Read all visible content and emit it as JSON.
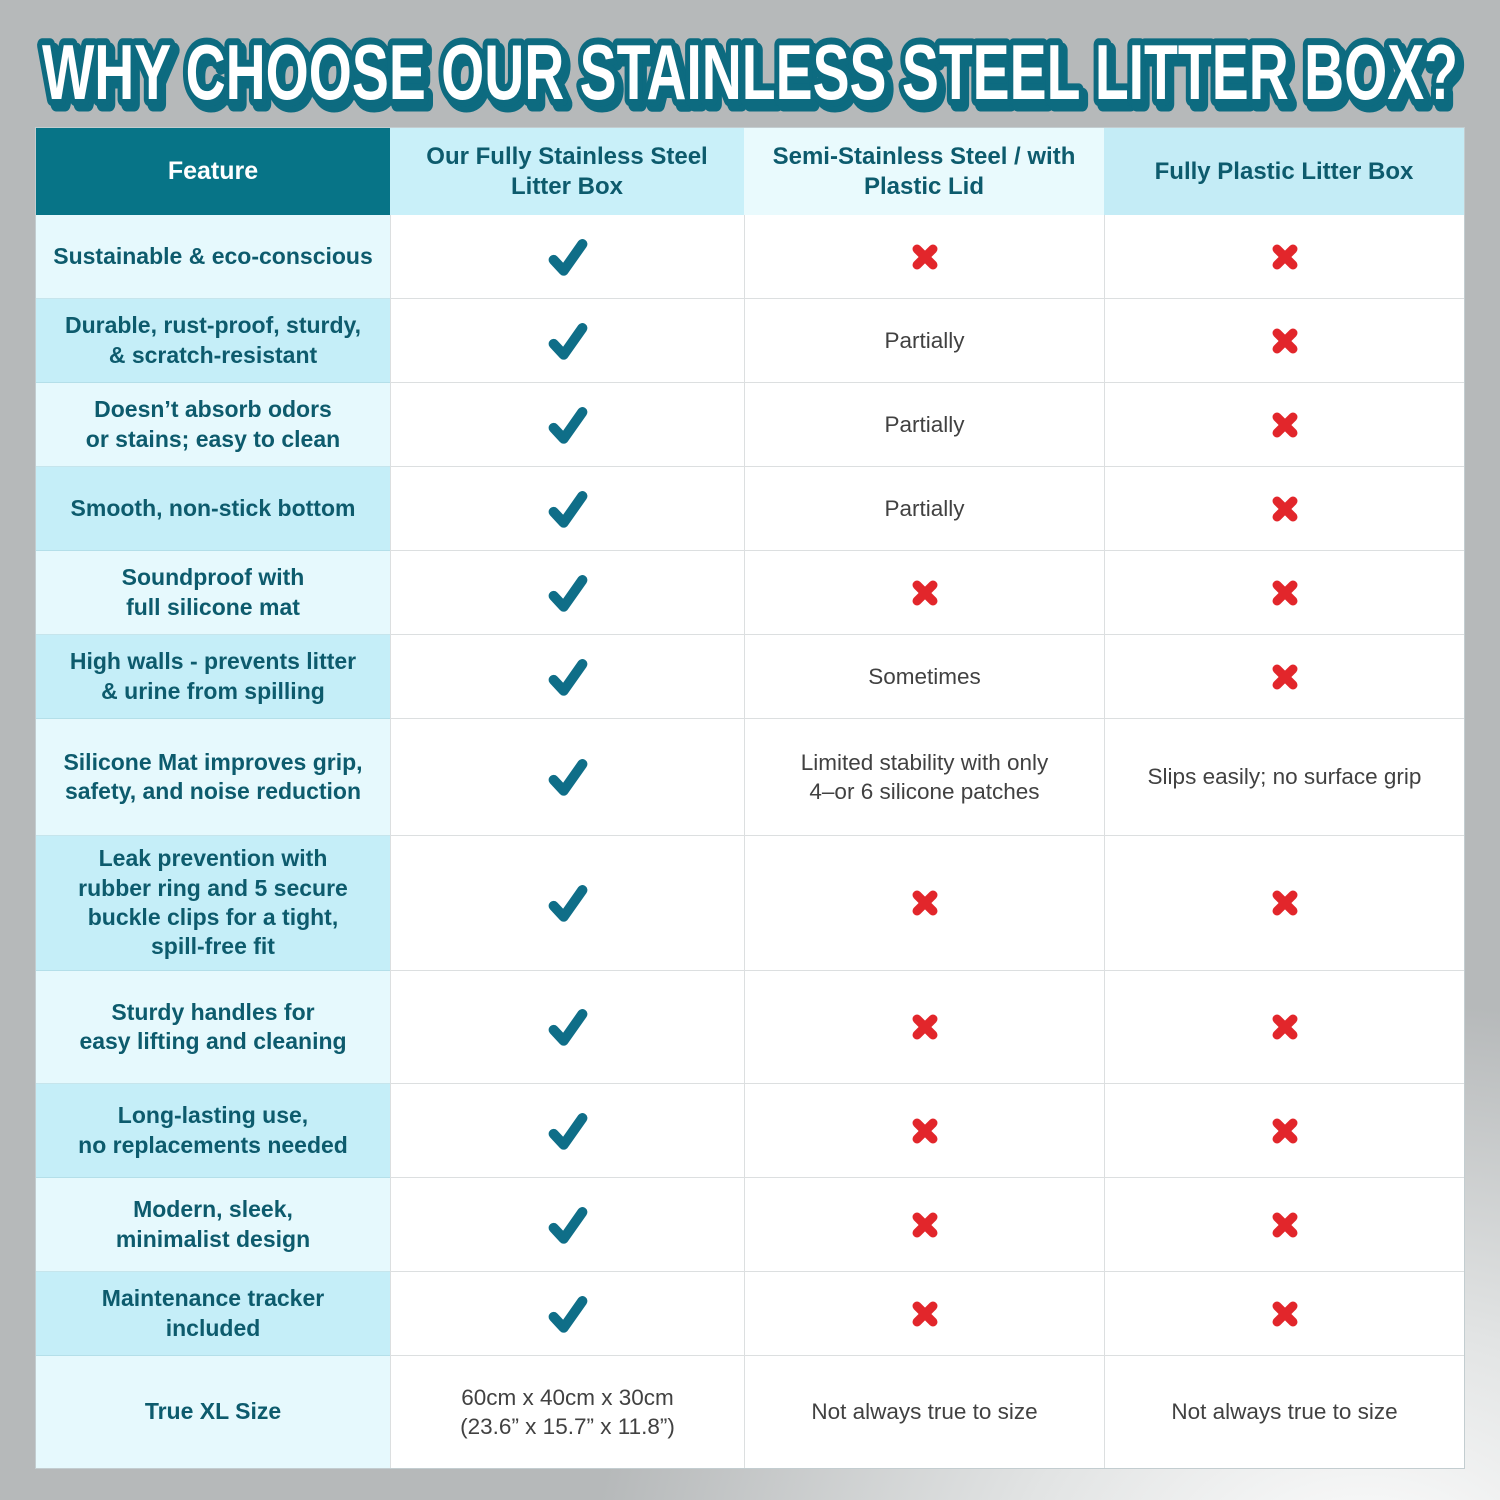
{
  "title": "WHY CHOOSE OUR STAINLESS STEEL LITTER BOX?",
  "colors": {
    "background_gray": "#b6b9ba",
    "background_highlight": "#ffffff",
    "header_dark_teal": "#077487",
    "header_light_cyan": "#c9f0f9",
    "header_pale_cyan": "#e9fafd",
    "feature_row_light": "#e6f9fd",
    "feature_row_dark": "#c5eef8",
    "feature_text_teal": "#0d5b6d",
    "check_teal": "#0f6e88",
    "cross_red": "#e2262b",
    "body_text": "#414141",
    "title_fill": "#ffffff",
    "title_outline": "#0d6b80"
  },
  "table": {
    "columns": [
      "Feature",
      "Our Fully Stainless\nSteel Litter Box",
      "Semi-Stainless Steel /\nwith Plastic Lid",
      "Fully Plastic Litter Box"
    ],
    "icon_legend": {
      "check": "check-icon",
      "cross": "cross-icon"
    },
    "rows": [
      {
        "feature": "Sustainable & eco-conscious",
        "values": [
          "check",
          "cross",
          "cross"
        ]
      },
      {
        "feature": "Durable, rust-proof, sturdy,\n& scratch-resistant",
        "values": [
          "check",
          "Partially",
          "cross"
        ]
      },
      {
        "feature": "Doesn’t absorb odors\nor stains; easy to clean",
        "values": [
          "check",
          "Partially",
          "cross"
        ]
      },
      {
        "feature": "Smooth, non-stick bottom",
        "values": [
          "check",
          "Partially",
          "cross"
        ]
      },
      {
        "feature": "Soundproof with\nfull silicone mat",
        "values": [
          "check",
          "cross",
          "cross"
        ]
      },
      {
        "feature": "High walls - prevents litter\n& urine from spilling",
        "values": [
          "check",
          "Sometimes",
          "cross"
        ]
      },
      {
        "feature": "Silicone Mat improves grip,\nsafety, and noise reduction",
        "values": [
          "check",
          "Limited stability with only\n4–or 6 silicone patches",
          "Slips easily; no surface grip"
        ]
      },
      {
        "feature": "Leak prevention with\nrubber ring and 5 secure\nbuckle clips for a tight,\nspill-free fit",
        "values": [
          "check",
          "cross",
          "cross"
        ]
      },
      {
        "feature": "Sturdy handles for\neasy lifting and cleaning",
        "values": [
          "check",
          "cross",
          "cross"
        ]
      },
      {
        "feature": "Long-lasting use,\nno replacements needed",
        "values": [
          "check",
          "cross",
          "cross"
        ]
      },
      {
        "feature": "Modern, sleek,\nminimalist design",
        "values": [
          "check",
          "cross",
          "cross"
        ]
      },
      {
        "feature": "Maintenance tracker included",
        "values": [
          "check",
          "cross",
          "cross"
        ]
      },
      {
        "feature": "True XL Size",
        "values": [
          "60cm x 40cm x 30cm\n(23.6” x 15.7” x 11.8”)",
          "Not always true to size",
          "Not always true to size"
        ]
      }
    ]
  }
}
